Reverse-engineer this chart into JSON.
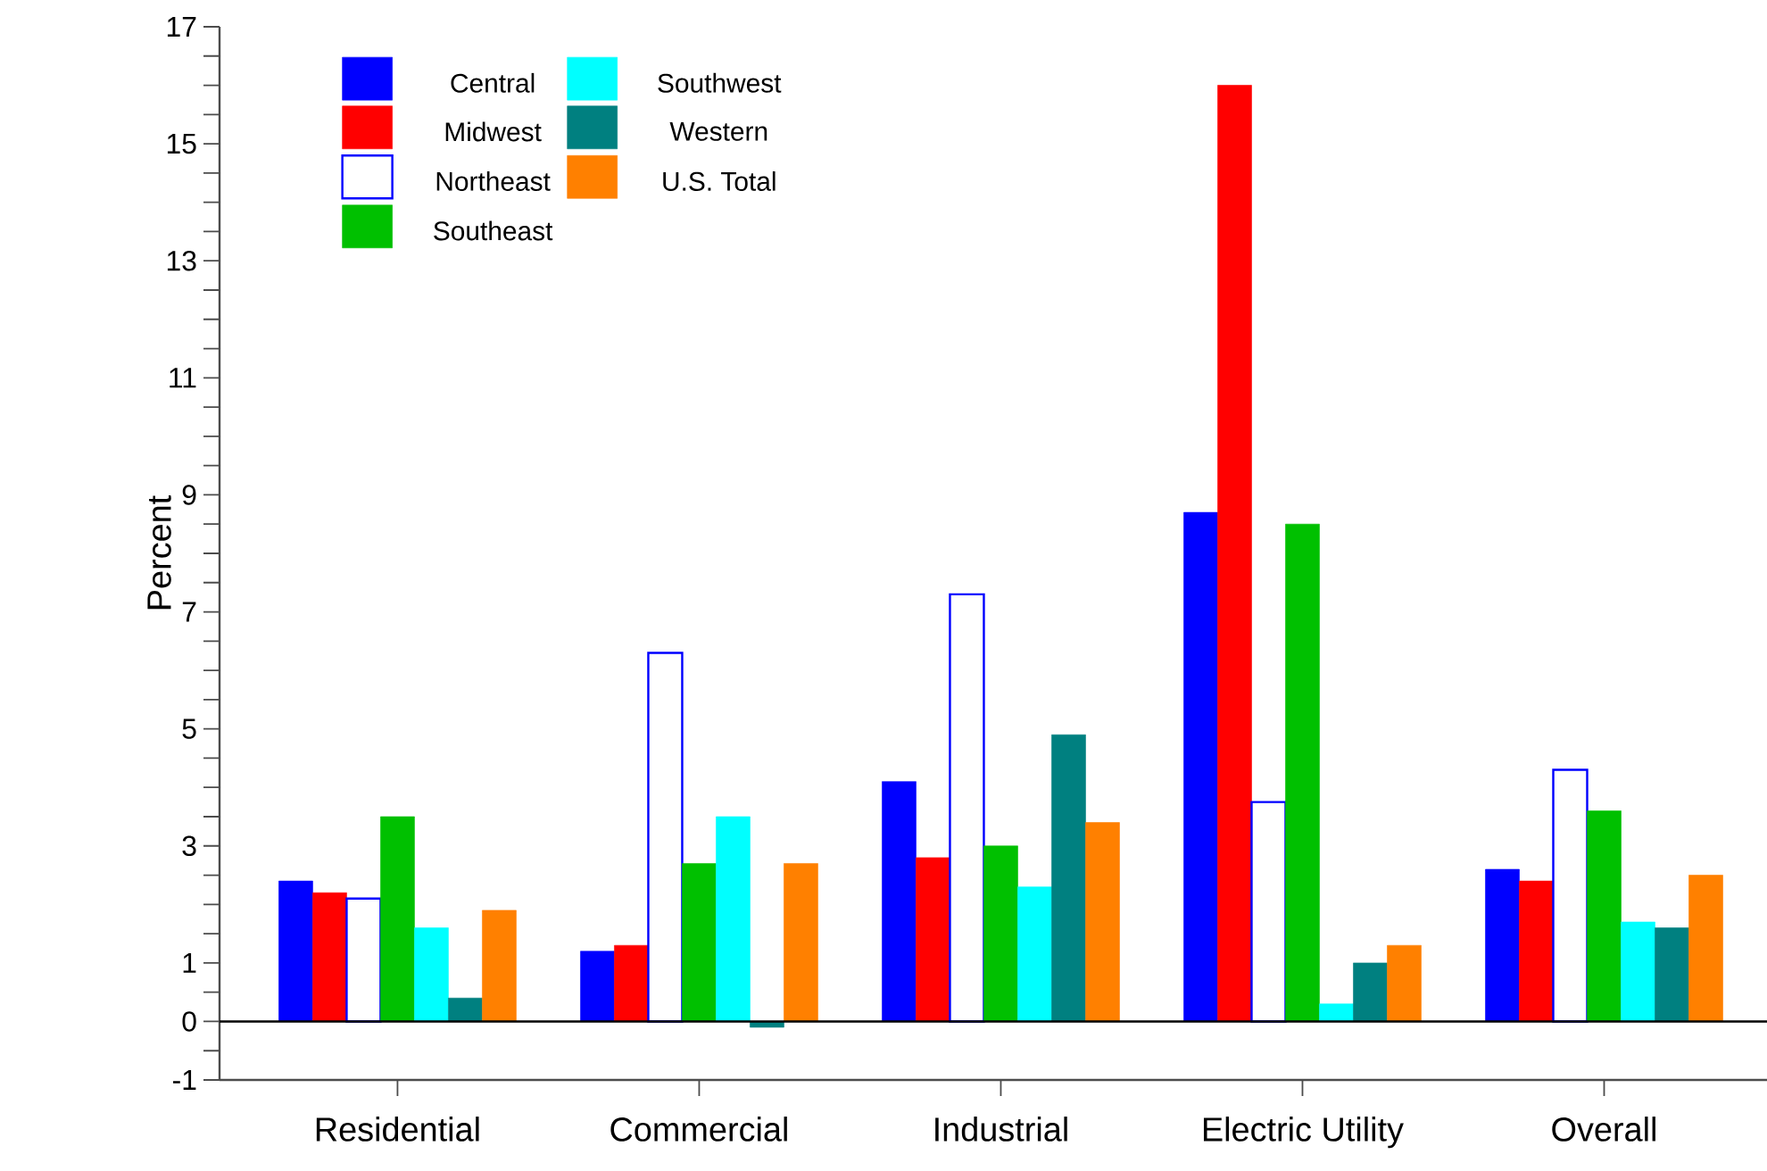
{
  "chart_data": {
    "type": "bar",
    "ylabel": "Percent",
    "categories": [
      "Residential",
      "Commercial",
      "Industrial",
      "Electric Utility",
      "Overall"
    ],
    "series": [
      {
        "name": "Central",
        "color": "#0000ff",
        "values": [
          2.4,
          1.2,
          4.1,
          8.7,
          2.6
        ]
      },
      {
        "name": "Midwest",
        "color": "#ff0000",
        "values": [
          2.2,
          1.3,
          2.8,
          16.0,
          2.4
        ]
      },
      {
        "name": "Northeast",
        "color": "#0000ff",
        "values": [
          2.1,
          6.3,
          7.3,
          3.75,
          4.3
        ]
      },
      {
        "name": "Southeast",
        "color": "#00c000",
        "values": [
          3.5,
          2.7,
          3.0,
          8.5,
          3.6
        ]
      },
      {
        "name": "Southwest",
        "color": "#00ffff",
        "values": [
          1.6,
          3.5,
          2.3,
          0.3,
          1.7
        ]
      },
      {
        "name": "Western",
        "color": "#008080",
        "values": [
          0.4,
          -0.1,
          4.9,
          1.0,
          1.6
        ]
      },
      {
        "name": "U.S. Total",
        "color": "#ff8000",
        "values": [
          1.9,
          2.7,
          3.4,
          1.3,
          2.5
        ]
      }
    ],
    "ylim": [
      -1,
      17
    ],
    "yticks": [
      -1,
      {
        "value": -0.5,
        "label": null
      },
      0,
      {
        "value": 0.5,
        "label": null
      },
      1,
      {
        "value": 1.5,
        "label": null
      },
      {
        "value": 2,
        "label": null
      },
      {
        "value": 2.5,
        "label": null
      },
      3,
      {
        "value": 3.5,
        "label": null
      },
      {
        "value": 4,
        "label": null
      },
      {
        "value": 4.5,
        "label": null
      },
      5,
      {
        "value": 5.5,
        "label": null
      },
      {
        "value": 6,
        "label": null
      },
      {
        "value": 6.5,
        "label": null
      },
      7,
      {
        "value": 7.5,
        "label": null
      },
      {
        "value": 8,
        "label": null
      },
      {
        "value": 8.5,
        "label": null
      },
      9,
      {
        "value": 9.5,
        "label": null
      },
      {
        "value": 10,
        "label": null
      },
      {
        "value": 10.5,
        "label": null
      },
      11,
      {
        "value": 11.5,
        "label": null
      },
      {
        "value": 12,
        "label": null
      },
      {
        "value": 12.5,
        "label": null
      },
      13,
      {
        "value": 13.5,
        "label": null
      },
      {
        "value": 14,
        "label": null
      },
      {
        "value": 14.5,
        "label": null
      },
      15,
      {
        "value": 15.5,
        "label": null
      },
      {
        "value": 16,
        "label": null
      },
      {
        "value": 16.5,
        "label": null
      },
      17
    ],
    "ref_lines": [
      {
        "axis": "y",
        "value": 0
      }
    ],
    "grid": false,
    "legend": "top left"
  }
}
